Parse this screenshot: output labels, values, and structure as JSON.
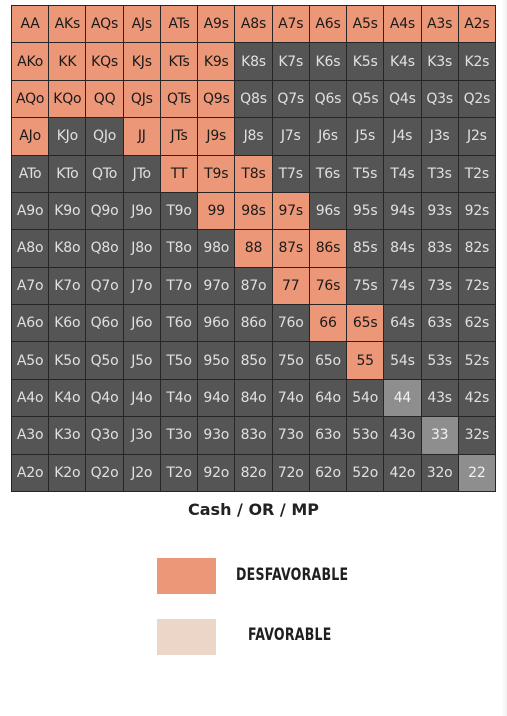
{
  "chart_title": "Cash / OR / MP",
  "ranks": [
    "A",
    "K",
    "Q",
    "J",
    "T",
    "9",
    "8",
    "7",
    "6",
    "5",
    "4",
    "3",
    "2"
  ],
  "colors": {
    "desfavorable": "#ec9878",
    "favorable": "#ecd6c8",
    "fold": "#555555",
    "neutral": "#8e8e8e"
  },
  "grid": [
    [
      "AA",
      "AKs",
      "AQs",
      "AJs",
      "ATs",
      "A9s",
      "A8s",
      "A7s",
      "A6s",
      "A5s",
      "A4s",
      "A3s",
      "A2s"
    ],
    [
      "AKo",
      "KK",
      "KQs",
      "KJs",
      "KTs",
      "K9s",
      "K8s",
      "K7s",
      "K6s",
      "K5s",
      "K4s",
      "K3s",
      "K2s"
    ],
    [
      "AQo",
      "KQo",
      "QQ",
      "QJs",
      "QTs",
      "Q9s",
      "Q8s",
      "Q7s",
      "Q6s",
      "Q5s",
      "Q4s",
      "Q3s",
      "Q2s"
    ],
    [
      "AJo",
      "KJo",
      "QJo",
      "JJ",
      "JTs",
      "J9s",
      "J8s",
      "J7s",
      "J6s",
      "J5s",
      "J4s",
      "J3s",
      "J2s"
    ],
    [
      "ATo",
      "KTo",
      "QTo",
      "JTo",
      "TT",
      "T9s",
      "T8s",
      "T7s",
      "T6s",
      "T5s",
      "T4s",
      "T3s",
      "T2s"
    ],
    [
      "A9o",
      "K9o",
      "Q9o",
      "J9o",
      "T9o",
      "99",
      "98s",
      "97s",
      "96s",
      "95s",
      "94s",
      "93s",
      "92s"
    ],
    [
      "A8o",
      "K8o",
      "Q8o",
      "J8o",
      "T8o",
      "98o",
      "88",
      "87s",
      "86s",
      "85s",
      "84s",
      "83s",
      "82s"
    ],
    [
      "A7o",
      "K7o",
      "Q7o",
      "J7o",
      "T7o",
      "97o",
      "87o",
      "77",
      "76s",
      "75s",
      "74s",
      "73s",
      "72s"
    ],
    [
      "A6o",
      "K6o",
      "Q6o",
      "J6o",
      "T6o",
      "96o",
      "86o",
      "76o",
      "66",
      "65s",
      "64s",
      "63s",
      "62s"
    ],
    [
      "A5o",
      "K5o",
      "Q5o",
      "J5o",
      "T5o",
      "95o",
      "85o",
      "75o",
      "65o",
      "55",
      "54s",
      "53s",
      "52s"
    ],
    [
      "A4o",
      "K4o",
      "Q4o",
      "J4o",
      "T4o",
      "94o",
      "84o",
      "74o",
      "64o",
      "54o",
      "44",
      "43s",
      "42s"
    ],
    [
      "A3o",
      "K3o",
      "Q3o",
      "J3o",
      "T3o",
      "93o",
      "83o",
      "73o",
      "63o",
      "53o",
      "43o",
      "33",
      "32s"
    ],
    [
      "A2o",
      "K2o",
      "Q2o",
      "J2o",
      "T2o",
      "92o",
      "82o",
      "72o",
      "62o",
      "52o",
      "42o",
      "32o",
      "22"
    ]
  ],
  "desfavorable_hands": [
    "AA",
    "AKs",
    "AQs",
    "AJs",
    "ATs",
    "A9s",
    "A8s",
    "A7s",
    "A6s",
    "A5s",
    "A4s",
    "A3s",
    "A2s",
    "AKo",
    "KK",
    "KQs",
    "KJs",
    "KTs",
    "K9s",
    "AQo",
    "KQo",
    "QQ",
    "QJs",
    "QTs",
    "Q9s",
    "AJo",
    "JJ",
    "JTs",
    "J9s",
    "TT",
    "T9s",
    "T8s",
    "99",
    "98s",
    "97s",
    "88",
    "87s",
    "86s",
    "77",
    "76s",
    "66",
    "65s",
    "55"
  ],
  "favorable_hands": [],
  "neutral_hands": [
    "44",
    "33",
    "22"
  ],
  "legend": [
    {
      "key": "desfavorable",
      "label": "DESFAVORABLE"
    },
    {
      "key": "favorable",
      "label": "FAVORABLE"
    }
  ]
}
